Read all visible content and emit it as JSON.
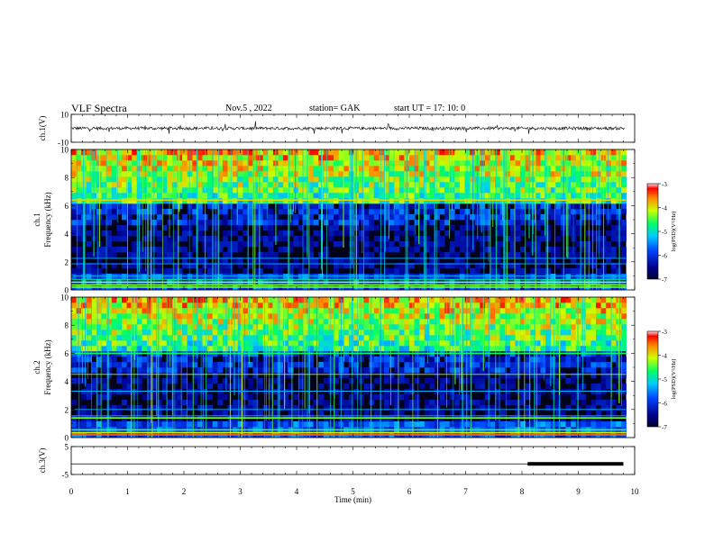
{
  "header": {
    "title": "VLF Spectra",
    "date": "Nov.5 , 2022",
    "station": "station= GAK",
    "start": "start UT = 17: 10: 0"
  },
  "chart_data": [
    {
      "type": "line",
      "ylabel": "ch.1(V)",
      "ylim": [
        -10,
        10
      ],
      "yticks": [
        "10",
        "-10"
      ],
      "x": [
        0,
        1,
        2,
        3,
        4,
        5,
        6,
        7,
        8,
        9,
        9.8
      ],
      "y_baseline": 0,
      "note_values": "noisy waveform around 0 V with spikes, approx amplitude +/-2 V"
    },
    {
      "type": "heatmap",
      "ylabel": "ch.1 Frequency (kHz)",
      "ylim": [
        0,
        10
      ],
      "yticks": [
        "0",
        "2",
        "4",
        "6",
        "8",
        "10"
      ],
      "colorbar": {
        "label": "log(PSD)(V²/Hz)",
        "range": [
          -7,
          -3
        ],
        "ticks": [
          "-3",
          "-4",
          "-5",
          "-6",
          "-7"
        ]
      }
    },
    {
      "type": "heatmap",
      "ylabel": "ch.2 Frequency (kHz)",
      "ylim": [
        0,
        10
      ],
      "yticks": [
        "0",
        "2",
        "4",
        "6",
        "8",
        "10"
      ],
      "colorbar": {
        "label": "log(PSD)(V²/Hz)",
        "range": [
          -7,
          -3
        ],
        "ticks": [
          "-3",
          "-4",
          "-5",
          "-6",
          "-7"
        ]
      }
    },
    {
      "type": "line",
      "ylabel": "ch.3(V)",
      "ylim": [
        -5,
        5
      ],
      "yticks": [
        "5",
        "-5"
      ],
      "x": [
        0,
        9.8
      ],
      "y": [
        -1.2,
        -1.2
      ],
      "flag_bar": {
        "x_start": 8.1,
        "x_end": 9.8
      }
    }
  ],
  "xaxis": {
    "label": "Time (min)",
    "range": [
      0,
      10
    ],
    "ticks": [
      "0",
      "1",
      "2",
      "3",
      "4",
      "5",
      "6",
      "7",
      "8",
      "9",
      "10"
    ]
  }
}
